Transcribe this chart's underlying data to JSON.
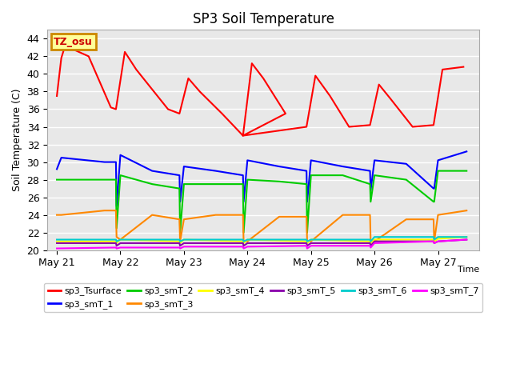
{
  "title": "SP3 Soil Temperature",
  "ylabel": "Soil Temperature (C)",
  "xlabel": "Time",
  "bg_color": "#e8e8e8",
  "tz_label": "TZ_osu",
  "tz_box_color": "#ffff99",
  "tz_border_color": "#cc8800",
  "tz_text_color": "#cc0000",
  "ylim": [
    20,
    45
  ],
  "yticks": [
    20,
    22,
    24,
    26,
    28,
    30,
    32,
    34,
    36,
    38,
    40,
    42,
    44
  ],
  "xtick_labels": [
    "May 21",
    "May 22",
    "May 23",
    "May 24",
    "May 25",
    "May 26",
    "May 27"
  ],
  "xtick_positions": [
    0,
    1,
    2,
    3,
    4,
    5,
    6
  ],
  "series": {
    "sp3_Tsurface": {
      "color": "#ff0000",
      "x": [
        0.0,
        0.07,
        0.13,
        0.5,
        0.85,
        0.93,
        1.07,
        1.25,
        1.75,
        1.93,
        2.07,
        2.25,
        2.6,
        2.93,
        3.07,
        3.25,
        3.6,
        2.93,
        3.93,
        4.07,
        4.3,
        4.6,
        4.93,
        5.07,
        5.25,
        5.6,
        5.93,
        6.07,
        6.4
      ],
      "y": [
        37.5,
        41.8,
        43.2,
        42.0,
        36.2,
        36.0,
        42.5,
        40.5,
        36.0,
        35.5,
        39.5,
        38.0,
        35.5,
        33.0,
        41.2,
        39.5,
        35.5,
        33.0,
        34.0,
        39.8,
        37.5,
        34.0,
        34.2,
        38.8,
        37.2,
        34.0,
        34.2,
        40.5,
        40.8
      ]
    },
    "sp3_smT_1": {
      "color": "#0000ff",
      "x": [
        0.0,
        0.07,
        0.75,
        0.93,
        0.94,
        1.0,
        1.5,
        1.93,
        1.94,
        2.0,
        2.5,
        2.93,
        2.94,
        3.0,
        3.5,
        3.93,
        3.94,
        4.0,
        4.5,
        4.93,
        4.94,
        5.0,
        5.5,
        5.93,
        5.94,
        6.0,
        6.45
      ],
      "y": [
        29.2,
        30.5,
        30.0,
        30.0,
        25.0,
        30.8,
        29.0,
        28.5,
        25.5,
        29.5,
        29.0,
        28.5,
        25.5,
        30.2,
        29.5,
        29.0,
        25.5,
        30.2,
        29.5,
        29.0,
        26.8,
        30.2,
        29.8,
        27.0,
        27.0,
        30.2,
        31.2
      ]
    },
    "sp3_smT_2": {
      "color": "#00cc00",
      "x": [
        0.0,
        0.07,
        0.75,
        0.93,
        0.94,
        1.0,
        1.5,
        1.93,
        1.94,
        2.0,
        2.5,
        2.93,
        2.94,
        3.0,
        3.5,
        3.93,
        3.94,
        4.0,
        4.5,
        4.93,
        4.94,
        5.0,
        5.5,
        5.93,
        5.94,
        6.0,
        6.45
      ],
      "y": [
        28.0,
        28.0,
        28.0,
        28.0,
        22.5,
        28.5,
        27.5,
        27.0,
        22.0,
        27.5,
        27.5,
        27.5,
        22.0,
        28.0,
        27.8,
        27.5,
        22.0,
        28.5,
        28.5,
        27.5,
        25.5,
        28.5,
        28.0,
        25.5,
        25.5,
        29.0,
        29.0
      ]
    },
    "sp3_smT_3": {
      "color": "#ff8800",
      "x": [
        0.0,
        0.07,
        0.75,
        0.93,
        0.94,
        1.0,
        1.5,
        1.93,
        1.94,
        2.0,
        2.5,
        2.93,
        2.94,
        3.0,
        3.5,
        3.93,
        3.94,
        4.0,
        4.5,
        4.93,
        4.94,
        5.0,
        5.5,
        5.93,
        5.94,
        6.0,
        6.45
      ],
      "y": [
        24.0,
        24.0,
        24.5,
        24.5,
        21.5,
        21.2,
        24.0,
        23.5,
        21.0,
        23.5,
        24.0,
        24.0,
        21.0,
        21.0,
        23.8,
        23.8,
        21.0,
        21.0,
        24.0,
        24.0,
        21.0,
        21.0,
        23.5,
        23.5,
        21.0,
        24.0,
        24.5
      ]
    },
    "sp3_smT_4": {
      "color": "#ffff00",
      "x": [
        0.0,
        0.93,
        0.94,
        1.0,
        1.93,
        1.94,
        2.0,
        2.93,
        2.94,
        3.0,
        3.93,
        3.94,
        4.0,
        4.93,
        4.94,
        5.0,
        5.93,
        5.94,
        6.0,
        6.45
      ],
      "y": [
        21.0,
        21.0,
        20.8,
        21.2,
        21.0,
        20.8,
        21.2,
        21.0,
        20.8,
        21.2,
        21.0,
        20.8,
        21.2,
        21.0,
        20.8,
        21.2,
        21.2,
        21.0,
        21.3,
        21.5
      ]
    },
    "sp3_smT_5": {
      "color": "#8800aa",
      "x": [
        0.0,
        0.93,
        0.94,
        1.0,
        1.93,
        1.94,
        2.0,
        2.93,
        2.94,
        3.0,
        3.93,
        3.94,
        4.0,
        4.93,
        4.94,
        5.0,
        5.93,
        5.94,
        6.0,
        6.45
      ],
      "y": [
        20.8,
        20.8,
        20.5,
        20.8,
        20.8,
        20.5,
        20.8,
        20.8,
        20.5,
        20.8,
        20.8,
        20.5,
        20.8,
        20.8,
        20.5,
        21.0,
        21.0,
        20.8,
        21.0,
        21.2
      ]
    },
    "sp3_smT_6": {
      "color": "#00cccc",
      "x": [
        0.0,
        0.93,
        0.94,
        1.0,
        1.93,
        1.94,
        2.0,
        2.93,
        2.94,
        3.0,
        3.93,
        3.94,
        4.0,
        4.93,
        4.94,
        5.0,
        5.93,
        5.94,
        6.0,
        6.45
      ],
      "y": [
        21.2,
        21.2,
        21.0,
        21.2,
        21.2,
        21.0,
        21.2,
        21.2,
        21.0,
        21.2,
        21.2,
        21.0,
        21.2,
        21.2,
        21.0,
        21.5,
        21.5,
        21.2,
        21.5,
        21.5
      ]
    },
    "sp3_smT_7": {
      "color": "#ff00ff",
      "x": [
        0.0,
        0.93,
        0.94,
        1.0,
        1.93,
        1.94,
        2.0,
        2.93,
        2.94,
        3.0,
        3.93,
        3.94,
        4.0,
        4.93,
        4.94,
        5.0,
        5.93,
        5.94,
        6.0,
        6.45
      ],
      "y": [
        20.2,
        20.3,
        20.2,
        20.3,
        20.3,
        20.2,
        20.4,
        20.4,
        20.2,
        20.4,
        20.5,
        20.2,
        20.5,
        20.5,
        20.3,
        20.8,
        21.0,
        20.8,
        21.0,
        21.2
      ]
    }
  },
  "legend_order": [
    "sp3_Tsurface",
    "sp3_smT_1",
    "sp3_smT_2",
    "sp3_smT_3",
    "sp3_smT_4",
    "sp3_smT_5",
    "sp3_smT_6",
    "sp3_smT_7"
  ]
}
